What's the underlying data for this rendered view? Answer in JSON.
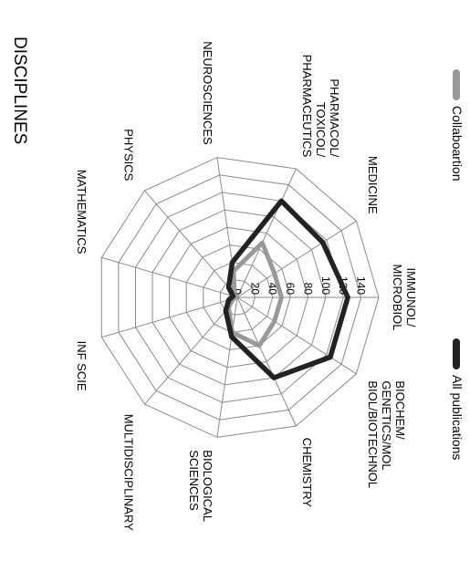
{
  "title": "DISCIPLINES",
  "chart_data": {
    "type": "radar",
    "axes": [
      {
        "label": [
          "IMMUNOL/",
          "MICROBIOL"
        ]
      },
      {
        "label": [
          "MEDICINE"
        ]
      },
      {
        "label": [
          "PHARMACOL/",
          "TOXICOL/",
          "PHARMACEUTICS"
        ]
      },
      {
        "label": [
          "NEUROSCIENCES"
        ]
      },
      {
        "label": [
          "PHYSICS"
        ]
      },
      {
        "label": [
          "MATHEMATICS"
        ]
      },
      {
        "label": [
          "INF SCIE"
        ]
      },
      {
        "label": [
          "MULTIDISCIPLINARY"
        ]
      },
      {
        "label": [
          "BIOLOGICAL",
          "SCIENCES"
        ]
      },
      {
        "label": [
          "CHEMISTRY"
        ]
      },
      {
        "label": [
          "BIOCHEM/",
          "GENETICS/MOL",
          "BIOL/BIOTECHNOL"
        ]
      }
    ],
    "rlim": [
      0,
      160
    ],
    "tick_values": [
      0,
      20,
      40,
      60,
      80,
      100,
      120,
      140
    ],
    "tick_labels": [
      "0",
      "20",
      "40",
      "60",
      "80",
      "100",
      "120",
      "140"
    ],
    "series": [
      {
        "name": "All publications",
        "color": "#222222",
        "values": [
          125,
          115,
          120,
          40,
          15,
          5,
          10,
          20,
          45,
          100,
          125
        ]
      },
      {
        "name": "Collaboartion",
        "color": "#999999",
        "values": [
          50,
          50,
          68,
          30,
          5,
          2,
          5,
          15,
          40,
          60,
          50
        ]
      }
    ],
    "legend_position": "right"
  }
}
